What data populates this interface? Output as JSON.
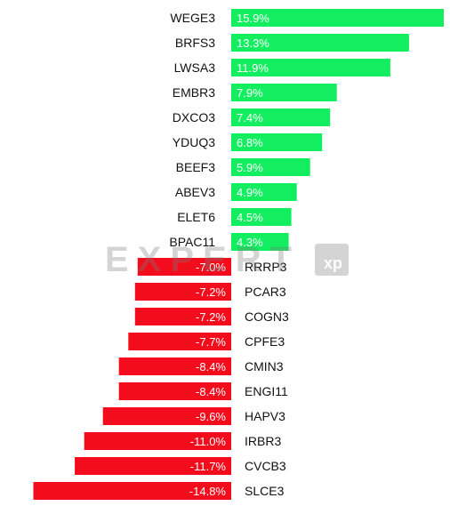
{
  "chart_data": {
    "type": "bar",
    "orientation": "horizontal",
    "unit": "%",
    "categories": [
      "WEGE3",
      "BRFS3",
      "LWSA3",
      "EMBR3",
      "DXCO3",
      "YDUQ3",
      "BEEF3",
      "ABEV3",
      "ELET6",
      "BPAC11",
      "RRRP3",
      "PCAR3",
      "COGN3",
      "CPFE3",
      "CMIN3",
      "ENGI11",
      "HAPV3",
      "IRBR3",
      "CVCB3",
      "SLCE3"
    ],
    "values": [
      15.9,
      13.3,
      11.9,
      7.9,
      7.4,
      6.8,
      5.9,
      4.9,
      4.5,
      4.3,
      -7.0,
      -7.2,
      -7.2,
      -7.7,
      -8.4,
      -8.4,
      -9.6,
      -11.0,
      -11.7,
      -14.8
    ],
    "value_labels": [
      "15.9%",
      "13.3%",
      "11.9%",
      "7.9%",
      "7.4%",
      "6.8%",
      "5.9%",
      "4.9%",
      "4.5%",
      "4.3%",
      "-7.0%",
      "-7.2%",
      "-7.2%",
      "-7.7%",
      "-8.4%",
      "-8.4%",
      "-9.6%",
      "-11.0%",
      "-11.7%",
      "-14.8%"
    ],
    "colors": {
      "positive": "#12ee60",
      "negative": "#f20c1c"
    },
    "grid": false,
    "legend": "none"
  },
  "watermark": {
    "text": "EXPERT",
    "logo_text": "xp"
  }
}
